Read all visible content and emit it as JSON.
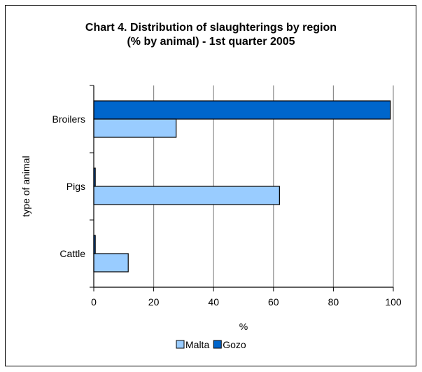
{
  "chart_data": {
    "type": "bar",
    "orientation": "horizontal",
    "title": "Chart 4.  Distribution of slaughterings by region",
    "subtitle": "(% by animal) - 1st quarter 2005",
    "xlabel": "%",
    "ylabel": "type of animal",
    "xlim": [
      0,
      100
    ],
    "xticks": [
      "0",
      "20",
      "40",
      "60",
      "80",
      "100"
    ],
    "grid": "vertical",
    "legend_position": "bottom",
    "categories": [
      "Broilers",
      "Pigs",
      "Cattle"
    ],
    "series": [
      {
        "name": "Malta",
        "values": [
          27.5,
          62,
          11.5
        ],
        "color": "#99ccff"
      },
      {
        "name": "Gozo",
        "values": [
          99,
          0.5,
          0.5
        ],
        "color": "#0066cc"
      }
    ]
  }
}
